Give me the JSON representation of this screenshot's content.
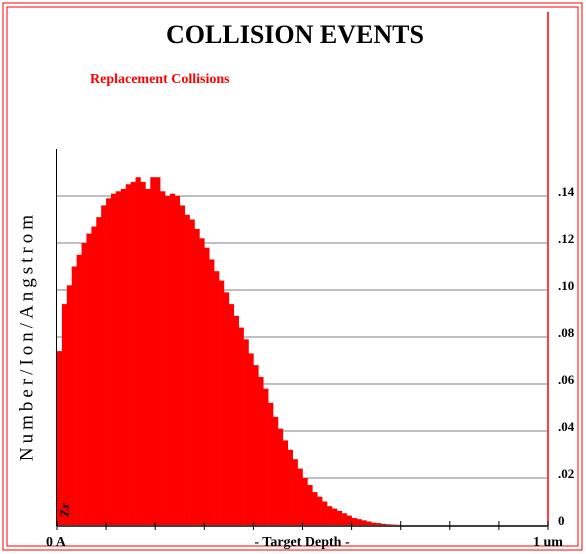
{
  "chart_data": {
    "type": "histogram",
    "title": "COLLISION EVENTS",
    "legend": "Replacement Collisions",
    "element": "Zr",
    "ylabel": "Number/Ion/Angstrom",
    "x_labels": {
      "start": "0 A",
      "center": "- Target Depth -",
      "end": "1 um"
    },
    "color": "#ff0000",
    "values": [
      0.074,
      0.094,
      0.102,
      0.11,
      0.115,
      0.12,
      0.124,
      0.127,
      0.131,
      0.136,
      0.139,
      0.141,
      0.142,
      0.143,
      0.145,
      0.146,
      0.148,
      0.146,
      0.143,
      0.148,
      0.148,
      0.142,
      0.14,
      0.141,
      0.14,
      0.136,
      0.132,
      0.13,
      0.126,
      0.122,
      0.118,
      0.113,
      0.108,
      0.104,
      0.099,
      0.094,
      0.089,
      0.084,
      0.079,
      0.073,
      0.068,
      0.063,
      0.058,
      0.052,
      0.046,
      0.041,
      0.036,
      0.032,
      0.028,
      0.024,
      0.02,
      0.017,
      0.014,
      0.012,
      0.01,
      0.008,
      0.007,
      0.006,
      0.005,
      0.004,
      0.003,
      0.0025,
      0.002,
      0.0015,
      0.001,
      0.0008,
      0.0005,
      0.0003,
      0.0002,
      0.0001,
      0,
      0,
      0,
      0,
      0,
      0,
      0,
      0,
      0,
      0,
      0,
      0,
      0,
      0,
      0,
      0,
      0,
      0,
      0,
      0,
      0,
      0,
      0,
      0,
      0,
      0,
      0,
      0,
      0,
      0
    ],
    "ylim": [
      0,
      0.16
    ],
    "yticks": [
      0,
      {
        "value": 0.02,
        "label": ".02"
      },
      {
        "value": 0.04,
        "label": ".04"
      },
      {
        "value": 0.06,
        "label": ".06"
      },
      {
        "value": 0.08,
        "label": ".08"
      },
      {
        "value": 0.1,
        "label": ".10"
      },
      {
        "value": 0.12,
        "label": ".12"
      },
      {
        "value": 0.14,
        "label": ".14"
      }
    ],
    "grid": true
  }
}
